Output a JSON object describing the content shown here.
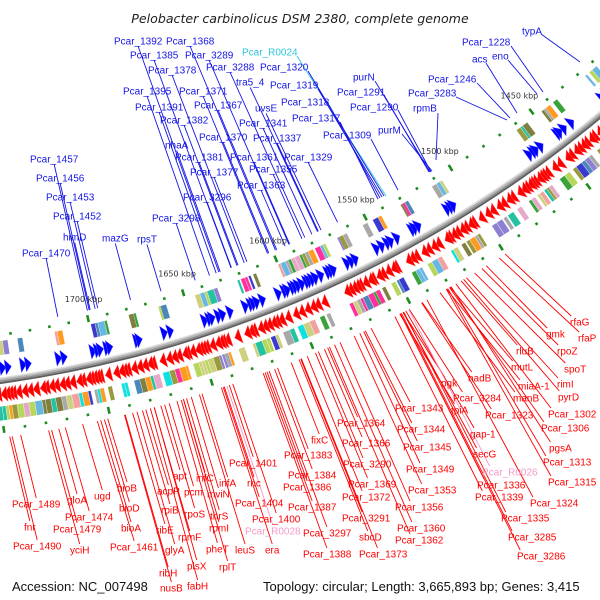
{
  "title": "Pelobacter carbinolicus DSM 2380, complete genome",
  "footer": {
    "accession": "Accession: NC_007498",
    "topology": "Topology: circular; Length: 3,665,893 bp; Genes: 3,415"
  },
  "genome": {
    "accession": "NC_007498",
    "topology": "circular",
    "length_bp": 3665893,
    "gene_count": 3415
  },
  "ticks": {
    "major_interval_kbp": 50,
    "minor_interval_kbp": 10,
    "labels": [
      {
        "label": "1450 kbp",
        "kbp": 1450
      },
      {
        "label": "1500 kbp",
        "kbp": 1500
      },
      {
        "label": "1550 kbp",
        "kbp": 1550
      },
      {
        "label": "1600 kbp",
        "kbp": 1600
      },
      {
        "label": "1650 kbp",
        "kbp": 1650
      },
      {
        "label": "1700 kbp",
        "kbp": 1700
      }
    ]
  },
  "colors": {
    "forward_strand": "#ff0000",
    "reverse_strand": "#0000ff",
    "forward_label": "#ff0000",
    "reverse_label": "#1414e6",
    "rna_label_forward": "#f49ac8",
    "rna_label_reverse": "#2ec4dc",
    "backbone": "#8c8c8c",
    "tick_marks": "#1e8c1e",
    "tick_label": "#333333",
    "cog_palette": [
      "#f2a0a0",
      "#9a9a3c",
      "#a8a8a8",
      "#39a339",
      "#12e0e0",
      "#3a3ad0",
      "#8d80d2",
      "#ff9b21",
      "#ff2f9c",
      "#4b87b9",
      "#cdd07c",
      "#b7d65c",
      "#68b6e2",
      "#7f7f40",
      "#24c2a2",
      "#e6a8c8"
    ]
  },
  "features": {
    "forward_ranges_kbp": [
      [
        1400,
        1451
      ],
      [
        1453,
        1503
      ],
      [
        1505,
        1534
      ],
      [
        1537,
        1543
      ],
      [
        1547,
        1576
      ],
      [
        1586,
        1628
      ],
      [
        1630,
        1633
      ],
      [
        1637,
        1694
      ],
      [
        1696,
        1698
      ],
      [
        1700,
        1770
      ]
    ],
    "reverse_ranges_kbp": [
      [
        1410,
        1418
      ],
      [
        1436,
        1446
      ],
      [
        1455,
        1464
      ],
      [
        1507,
        1513
      ],
      [
        1527,
        1531
      ],
      [
        1539,
        1553
      ],
      [
        1562,
        1567
      ],
      [
        1574,
        1605
      ],
      [
        1612,
        1624
      ],
      [
        1629,
        1645
      ],
      [
        1660,
        1664
      ],
      [
        1676,
        1680
      ],
      [
        1691,
        1701
      ],
      [
        1714,
        1718
      ],
      [
        1732,
        1737
      ],
      [
        1742,
        1750
      ]
    ]
  },
  "labels": {
    "reverse_strand": [
      {
        "text": "typA"
      },
      {
        "text": "Pcar_1228"
      },
      {
        "text": "eno"
      },
      {
        "text": "acs"
      },
      {
        "text": "Pcar_1246"
      },
      {
        "text": "Pcar_3283"
      },
      {
        "text": "purN"
      },
      {
        "text": "Pcar_1291"
      },
      {
        "text": "Pcar_1290"
      },
      {
        "text": "rpmB"
      },
      {
        "text": "purM"
      },
      {
        "text": "Pcar_1309"
      },
      {
        "text": "Pcar_R0024",
        "type": "rna"
      },
      {
        "text": "Pcar_1320"
      },
      {
        "text": "Pcar_1319"
      },
      {
        "text": "Pcar_1318"
      },
      {
        "text": "Pcar_1317"
      },
      {
        "text": "Pcar_1329"
      },
      {
        "text": "Pcar_1392"
      },
      {
        "text": "Pcar_1368"
      },
      {
        "text": "Pcar_1385"
      },
      {
        "text": "Pcar_3289"
      },
      {
        "text": "Pcar_1378"
      },
      {
        "text": "Pcar_3288"
      },
      {
        "text": "tra5_4"
      },
      {
        "text": "Pcar_1395"
      },
      {
        "text": "Pcar_1371"
      },
      {
        "text": "Pcar_1391"
      },
      {
        "text": "Pcar_1367"
      },
      {
        "text": "uvsE"
      },
      {
        "text": "Pcar_1382"
      },
      {
        "text": "Pcar_1341"
      },
      {
        "text": "Pcar_1370"
      },
      {
        "text": "Pcar_1337"
      },
      {
        "text": "nhaA"
      },
      {
        "text": "Pcar_1381"
      },
      {
        "text": "Pcar_1361"
      },
      {
        "text": "Pcar_1377"
      },
      {
        "text": "Pcar_1355"
      },
      {
        "text": "Pcar_1363"
      },
      {
        "text": "Pcar_3296"
      },
      {
        "text": "Pcar_3298"
      },
      {
        "text": "rpsT"
      },
      {
        "text": "mazG"
      },
      {
        "text": "himD"
      },
      {
        "text": "Pcar_1452"
      },
      {
        "text": "Pcar_1453"
      },
      {
        "text": "Pcar_1456"
      },
      {
        "text": "Pcar_1457"
      },
      {
        "text": "Pcar_1470"
      }
    ],
    "forward_strand": [
      {
        "text": "rfaG"
      },
      {
        "text": "rfaP"
      },
      {
        "text": "gmk"
      },
      {
        "text": "rpoZ"
      },
      {
        "text": "rluB"
      },
      {
        "text": "spoT"
      },
      {
        "text": "mutL"
      },
      {
        "text": "rimI"
      },
      {
        "text": "miaA-1"
      },
      {
        "text": "pyrD"
      },
      {
        "text": "manB"
      },
      {
        "text": "nadB"
      },
      {
        "text": "pgk"
      },
      {
        "text": "Pcar_3284"
      },
      {
        "text": "Pcar_1302"
      },
      {
        "text": "tpiA"
      },
      {
        "text": "Pcar_1323"
      },
      {
        "text": "Pcar_1343"
      },
      {
        "text": "Pcar_1306"
      },
      {
        "text": "Pcar_1344"
      },
      {
        "text": "gap-1"
      },
      {
        "text": "pgsA"
      },
      {
        "text": "secG"
      },
      {
        "text": "Pcar_1313"
      },
      {
        "text": "Pcar_1345"
      },
      {
        "text": "Pcar_R0026",
        "type": "rna"
      },
      {
        "text": "Pcar_1315"
      },
      {
        "text": "Pcar_1349"
      },
      {
        "text": "Pcar_1336"
      },
      {
        "text": "Pcar_1339"
      },
      {
        "text": "Pcar_1324"
      },
      {
        "text": "Pcar_1353"
      },
      {
        "text": "Pcar_1335"
      },
      {
        "text": "Pcar_1356"
      },
      {
        "text": "Pcar_1360"
      },
      {
        "text": "Pcar_3285"
      },
      {
        "text": "Pcar_1362"
      },
      {
        "text": "Pcar_3286"
      },
      {
        "text": "Pcar_1364"
      },
      {
        "text": "fixC"
      },
      {
        "text": "Pcar_1366"
      },
      {
        "text": "Pcar_1383"
      },
      {
        "text": "Pcar_3290"
      },
      {
        "text": "Pcar_1384"
      },
      {
        "text": "Pcar_1369"
      },
      {
        "text": "Pcar_1386"
      },
      {
        "text": "Pcar_1372"
      },
      {
        "text": "Pcar_1387"
      },
      {
        "text": "Pcar_3291"
      },
      {
        "text": "Pcar_3297"
      },
      {
        "text": "sbcD"
      },
      {
        "text": "Pcar_1388"
      },
      {
        "text": "Pcar_1373"
      },
      {
        "text": "Pcar_1401"
      },
      {
        "text": "rnc"
      },
      {
        "text": "Pcar_1404"
      },
      {
        "text": "Pcar_1400"
      },
      {
        "text": "Pcar_R0028",
        "type": "rna"
      },
      {
        "text": "era"
      },
      {
        "text": "leuS"
      },
      {
        "text": "apt"
      },
      {
        "text": "infC"
      },
      {
        "text": "infA"
      },
      {
        "text": "acpP"
      },
      {
        "text": "pcm"
      },
      {
        "text": "mviN"
      },
      {
        "text": "rpiB"
      },
      {
        "text": "rpoS"
      },
      {
        "text": "thrS"
      },
      {
        "text": "rpmI"
      },
      {
        "text": "ribE"
      },
      {
        "text": "rpmF"
      },
      {
        "text": "glyA"
      },
      {
        "text": "pheT"
      },
      {
        "text": "plsX"
      },
      {
        "text": "rplT"
      },
      {
        "text": "ribH"
      },
      {
        "text": "nusB"
      },
      {
        "text": "fabH"
      },
      {
        "text": "Pcar_1489"
      },
      {
        "text": "gloA"
      },
      {
        "text": "ugd"
      },
      {
        "text": "bioB"
      },
      {
        "text": "bioD"
      },
      {
        "text": "Pcar_1474"
      },
      {
        "text": "fnr"
      },
      {
        "text": "Pcar_1479"
      },
      {
        "text": "bioA"
      },
      {
        "text": "Pcar_1490"
      },
      {
        "text": "yciH"
      },
      {
        "text": "Pcar_1461"
      }
    ]
  }
}
